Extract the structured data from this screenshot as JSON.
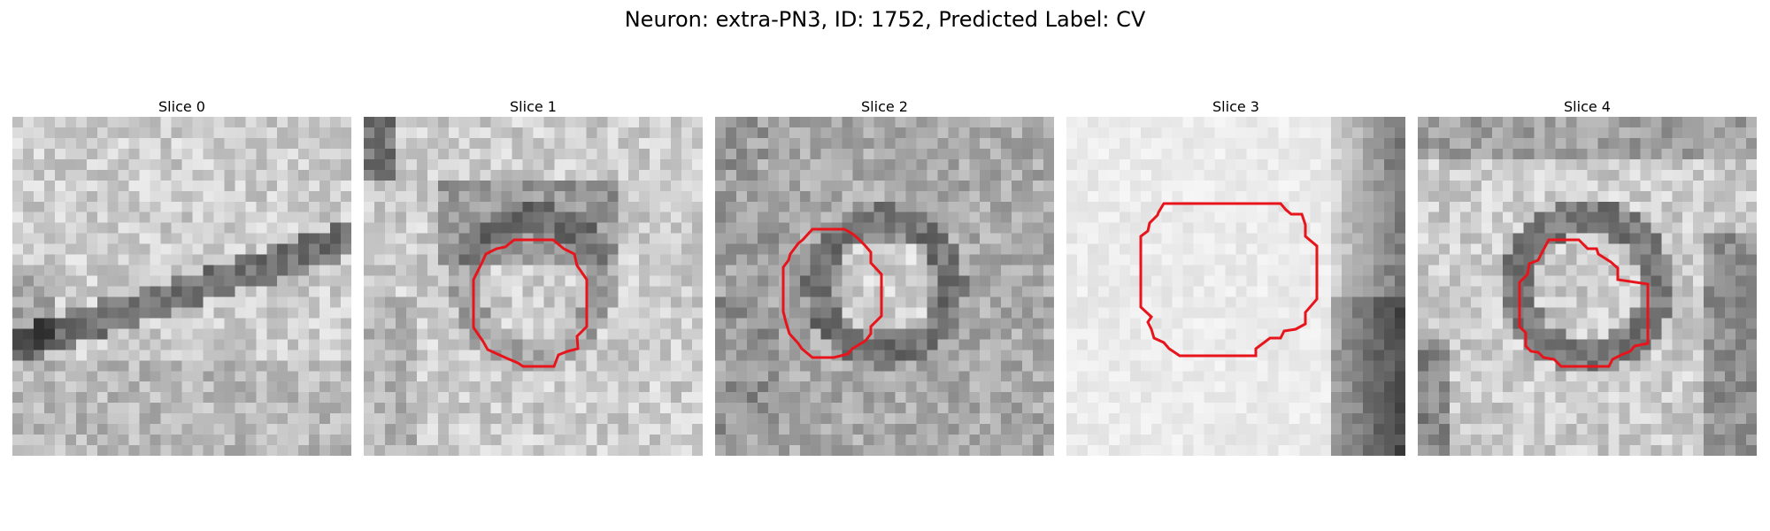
{
  "figure": {
    "title": "Neuron: extra-PN3, ID: 1752, Predicted Label: CV"
  },
  "contour_color": "#e8141c",
  "slices": [
    {
      "id": "slice-0",
      "label": "Slice 0",
      "style": "membrane",
      "has_contour": false
    },
    {
      "id": "slice-1",
      "label": "Slice 1",
      "style": "dark-top",
      "has_contour": true
    },
    {
      "id": "slice-2",
      "label": "Slice 2",
      "style": "ring",
      "has_contour": true
    },
    {
      "id": "slice-3",
      "label": "Slice 3",
      "style": "light-edge",
      "has_contour": true
    },
    {
      "id": "slice-4",
      "label": "Slice 4",
      "style": "ring-strong",
      "has_contour": true
    }
  ]
}
